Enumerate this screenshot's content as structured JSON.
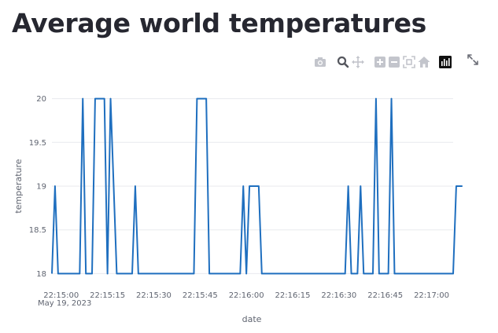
{
  "page": {
    "title": "Average world temperatures"
  },
  "toolbar": {
    "buttons": [
      {
        "icon": "camera-icon",
        "name": "download-plot-button"
      },
      {
        "icon": "magnifier-icon",
        "name": "zoom-button"
      },
      {
        "icon": "pan-arrows-icon",
        "name": "pan-button"
      },
      {
        "icon": "plus-box-icon",
        "name": "zoom-in-button"
      },
      {
        "icon": "minus-box-icon",
        "name": "zoom-out-button"
      },
      {
        "icon": "autoscale-icon",
        "name": "autoscale-button"
      },
      {
        "icon": "home-icon",
        "name": "reset-axes-button"
      },
      {
        "icon": "plotly-logo-icon",
        "name": "plotly-logo"
      }
    ],
    "expand_icon": "expand-arrows-icon"
  },
  "chart_data": {
    "type": "line",
    "title": "",
    "xlabel": "date",
    "ylabel": "temperature",
    "date_annotation": "May 19, 2023",
    "x_start": "22:14:57",
    "x_step_seconds": 1,
    "x_range": [
      "22:14:57",
      "22:17:07"
    ],
    "ylim": [
      17.95,
      20.05
    ],
    "x_ticks": [
      {
        "t": "22:15:00",
        "label": "22:15:00"
      },
      {
        "t": "22:15:15",
        "label": "22:15:15"
      },
      {
        "t": "22:15:30",
        "label": "22:15:30"
      },
      {
        "t": "22:15:45",
        "label": "22:15:45"
      },
      {
        "t": "22:16:00",
        "label": "22:16:00"
      },
      {
        "t": "22:16:15",
        "label": "22:16:15"
      },
      {
        "t": "22:16:30",
        "label": "22:16:30"
      },
      {
        "t": "22:16:45",
        "label": "22:16:45"
      },
      {
        "t": "22:17:00",
        "label": "22:17:00"
      }
    ],
    "y_ticks": [
      {
        "v": 18,
        "label": "18"
      },
      {
        "v": 18.5,
        "label": "18.5"
      },
      {
        "v": 19,
        "label": "19"
      },
      {
        "v": 19.5,
        "label": "19.5"
      },
      {
        "v": 20,
        "label": "20"
      }
    ],
    "line_color": "#1f6fbf",
    "grid": true,
    "series": [
      {
        "values": [
          18,
          19,
          18,
          18,
          18,
          18,
          18,
          18,
          18,
          18,
          20,
          18,
          18,
          18,
          20,
          20,
          20,
          20,
          18,
          20,
          19,
          18,
          18,
          18,
          18,
          18,
          18,
          19,
          18,
          18,
          18,
          18,
          18,
          18,
          18,
          18,
          18,
          18,
          18,
          18,
          18,
          18,
          18,
          18,
          18,
          18,
          18,
          20,
          20,
          20,
          20,
          18,
          18,
          18,
          18,
          18,
          18,
          18,
          18,
          18,
          18,
          18,
          19,
          18,
          19,
          19,
          19,
          19,
          18,
          18,
          18,
          18,
          18,
          18,
          18,
          18,
          18,
          18,
          18,
          18,
          18,
          18,
          18,
          18,
          18,
          18,
          18,
          18,
          18,
          18,
          18,
          18,
          18,
          18,
          18,
          18,
          19,
          18,
          18,
          18,
          19,
          18,
          18,
          18,
          18,
          20,
          18,
          18,
          18,
          18,
          20,
          18,
          18,
          18,
          18,
          18,
          18,
          18,
          18,
          18,
          18,
          18,
          18,
          18,
          18,
          18,
          18,
          18,
          18,
          18,
          18,
          19,
          19,
          19
        ]
      }
    ]
  }
}
